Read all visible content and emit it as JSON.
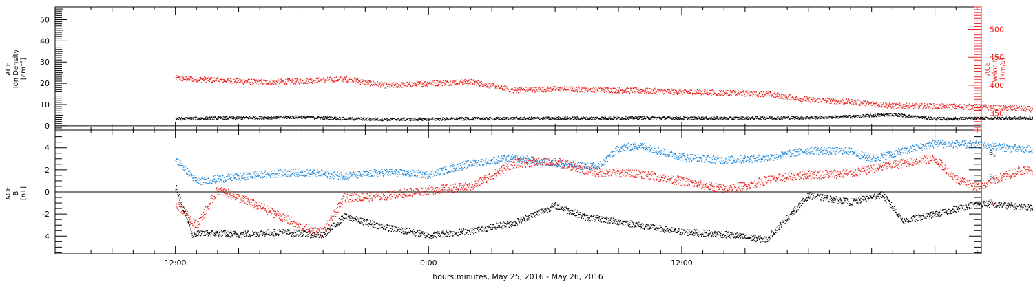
{
  "colors": {
    "black": "#000000",
    "red": "#e8221c",
    "blue": "#1a85d6"
  },
  "chart_data": [
    {
      "type": "scatter",
      "ylabel_left": [
        "ACE",
        "Ion Density",
        "[cm⁻³]"
      ],
      "ylabel_right": [
        "ACE",
        "Velocity",
        "[km/s]"
      ],
      "ylim_left": [
        -2,
        56
      ],
      "ylim_right": [
        320,
        540
      ],
      "yticks_left": [
        0,
        10,
        20,
        30,
        40,
        50
      ],
      "yticks_right": [
        350,
        400,
        450,
        500
      ],
      "series": [
        {
          "axis": "right",
          "color": "red",
          "x": [
            0,
            2,
            4,
            6,
            8,
            10,
            12,
            14,
            16,
            18,
            20,
            22,
            24,
            26,
            28,
            30,
            32,
            34,
            36,
            38,
            40,
            42,
            43.3
          ],
          "values": [
            413,
            410,
            406,
            408,
            412,
            400,
            404,
            407,
            392,
            394,
            393,
            391,
            389,
            387,
            385,
            375,
            371,
            364,
            363,
            362,
            359,
            355,
            360
          ]
        },
        {
          "axis": "left",
          "color": "black",
          "x": [
            0,
            2,
            4,
            6,
            8,
            10,
            12,
            14,
            16,
            18,
            20,
            22,
            24,
            26,
            28,
            30,
            32,
            34,
            36,
            38,
            40,
            42,
            43.3
          ],
          "values": [
            3.5,
            3.8,
            4,
            4.3,
            3.5,
            3.2,
            3.3,
            3.5,
            3.6,
            3.7,
            3.8,
            3.9,
            3.8,
            3.7,
            3.9,
            4,
            4.5,
            5.5,
            3.5,
            3.6,
            3.8,
            3.4,
            5.5
          ]
        }
      ]
    },
    {
      "type": "scatter",
      "ylabel": [
        "ACE",
        "B",
        "[nT]"
      ],
      "ylim": [
        -5.6,
        5.6
      ],
      "yticks": [
        -4,
        -2,
        0,
        2,
        4
      ],
      "legend": [
        "Bx",
        "By",
        "Bz"
      ],
      "series": [
        {
          "name": "Bx",
          "color": "black",
          "x": [
            0,
            0.8,
            1.5,
            3,
            5,
            7,
            8,
            10,
            12,
            14,
            16,
            18,
            19.5,
            20.5,
            22,
            24,
            26,
            28,
            30,
            32,
            33.5,
            34.5,
            36,
            38,
            40,
            42,
            43.3
          ],
          "values": [
            0.5,
            -3.8,
            -3.7,
            -3.8,
            -3.6,
            -3.9,
            -2.2,
            -3.2,
            -3.9,
            -3.5,
            -2.8,
            -1.2,
            -2.3,
            -2.5,
            -3.0,
            -3.6,
            -3.8,
            -4.3,
            -0.3,
            -0.9,
            -0.2,
            -2.6,
            -2.0,
            -1.0,
            -1.3,
            -1.6,
            -2.2
          ]
        },
        {
          "name": "By",
          "color": "blue",
          "x": [
            0,
            1,
            2,
            4,
            6,
            8,
            10,
            12,
            14,
            16,
            18,
            20,
            21,
            22,
            24,
            26,
            28,
            30,
            32,
            33,
            34,
            36,
            38,
            40,
            42,
            43.3
          ],
          "values": [
            3.0,
            1.0,
            1.2,
            1.6,
            1.8,
            1.5,
            1.8,
            1.6,
            2.6,
            3.1,
            2.6,
            2.3,
            4.0,
            4.2,
            3.2,
            2.9,
            3.1,
            3.8,
            3.7,
            3.0,
            3.5,
            4.4,
            4.3,
            3.9,
            3.8,
            3.2
          ]
        },
        {
          "name": "Bz",
          "color": "red",
          "x": [
            0,
            1,
            2,
            3,
            4,
            5,
            6,
            7,
            8,
            10,
            12,
            14,
            16,
            18,
            19,
            20,
            22,
            24,
            26,
            27,
            28,
            29,
            30,
            32,
            34,
            35,
            36,
            37,
            38,
            40,
            42,
            43.3
          ],
          "values": [
            -1.0,
            -3.0,
            0.2,
            -0.5,
            -1.3,
            -2.2,
            -3.2,
            -3.6,
            -0.5,
            -0.3,
            0.2,
            0.5,
            2.6,
            2.8,
            2.2,
            1.8,
            1.7,
            1.0,
            0.3,
            0.6,
            1.1,
            1.4,
            1.6,
            1.7,
            2.5,
            2.8,
            3.0,
            1.2,
            0.5,
            2.0,
            1.8,
            1.0
          ]
        }
      ]
    }
  ],
  "xaxis": {
    "label": "hours:minutes, May 25, 2016 - May 26, 2016",
    "range_hours": [
      -5.7,
      38.2
    ],
    "tick_labels": [
      {
        "hours": 0,
        "label": "12:00"
      },
      {
        "hours": 12,
        "label": "0:00"
      },
      {
        "hours": 24,
        "label": "12:00"
      }
    ]
  }
}
